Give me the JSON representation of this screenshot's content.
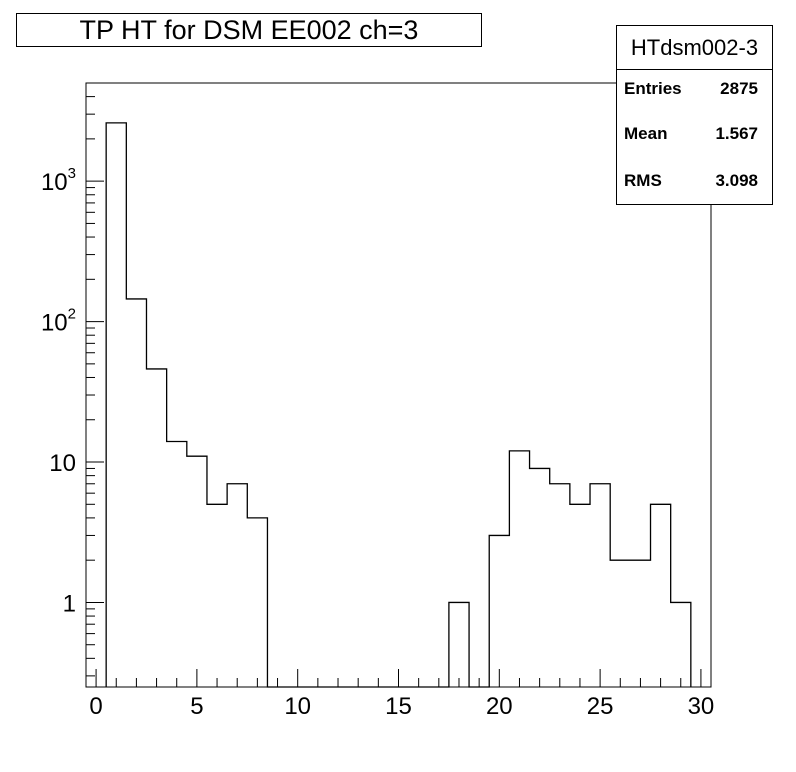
{
  "chart_data": {
    "type": "bar",
    "title": "TP HT for DSM EE002 ch=3",
    "xlabel": "",
    "ylabel": "",
    "xlim": [
      -0.5,
      30.5
    ],
    "ylog": true,
    "ylim": [
      0.25,
      5000
    ],
    "xticks": [
      0,
      5,
      10,
      15,
      20,
      25,
      30
    ],
    "yticks": [
      {
        "value": 1,
        "label": "1",
        "exp": ""
      },
      {
        "value": 10,
        "label": "10",
        "exp": ""
      },
      {
        "value": 100,
        "label": "10",
        "exp": "2"
      },
      {
        "value": 1000,
        "label": "10",
        "exp": "3"
      }
    ],
    "bins": {
      "edges": [
        0.5,
        1.5,
        2.5,
        3.5,
        4.5,
        5.5,
        6.5,
        7.5,
        8.5,
        9.5,
        10.5,
        11.5,
        12.5,
        13.5,
        14.5,
        15.5,
        16.5,
        17.5,
        18.5,
        19.5,
        20.5,
        21.5,
        22.5,
        23.5,
        24.5,
        25.5,
        26.5,
        27.5,
        28.5,
        29.5
      ],
      "values": [
        2600,
        145,
        46,
        14,
        11,
        5,
        7,
        4,
        0,
        0,
        0,
        0,
        0,
        0,
        0,
        0,
        0,
        1,
        0,
        3,
        12,
        9,
        7,
        5,
        7,
        2,
        2,
        5,
        1
      ]
    },
    "stats": {
      "name": "HTdsm002-3",
      "entries_label": "Entries",
      "entries": "2875",
      "mean_label": "Mean",
      "mean": "1.567",
      "rms_label": "RMS",
      "rms": "3.098"
    }
  }
}
